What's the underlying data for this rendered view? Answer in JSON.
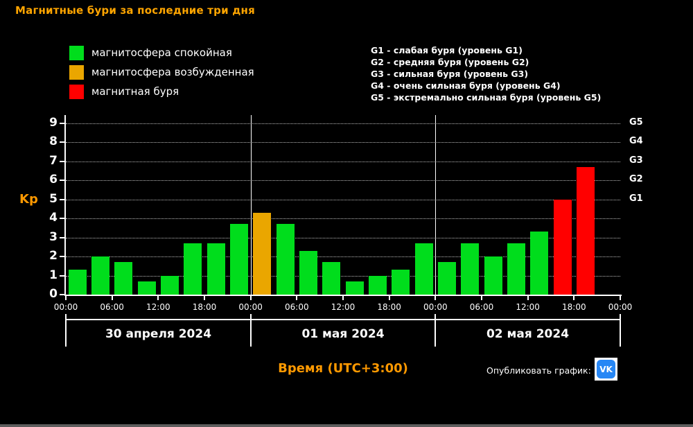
{
  "title": "Магнитные бури за последние три дня",
  "colors": {
    "accent_title": "#ffa500",
    "accent_axis": "#ff9900",
    "vk_blue": "#2787f5"
  },
  "legend": [
    {
      "label": "магнитосфера спокойная",
      "color": "#00dd1c"
    },
    {
      "label": "магнитосфера возбужденная",
      "color": "#eaa600"
    },
    {
      "label": "магнитная буря",
      "color": "#ff0000"
    }
  ],
  "g_legend": [
    "G1 - слабая буря (уровень G1)",
    "G2 - средняя буря (уровень G2)",
    "G3 - сильная буря (уровень G3)",
    "G4 - очень сильная буря (уровень G4)",
    "G5 - экстремально сильная буря (уровень G5)"
  ],
  "chart_data": {
    "type": "bar",
    "title": "Магнитные бури за последние три дня",
    "ylabel": "Kp",
    "xlabel": "Время (UTC+3:00)",
    "ylim": [
      0,
      9
    ],
    "yticks": [
      0,
      1,
      2,
      3,
      4,
      5,
      6,
      7,
      8,
      9
    ],
    "grid": "dotted-horizontal",
    "legend_position": "top",
    "right_axis": [
      {
        "kp": 5,
        "label": "G1"
      },
      {
        "kp": 6,
        "label": "G2"
      },
      {
        "kp": 7,
        "label": "G3"
      },
      {
        "kp": 8,
        "label": "G4"
      },
      {
        "kp": 9,
        "label": "G5"
      }
    ],
    "time_ticks": [
      "00:00",
      "06:00",
      "12:00",
      "18:00",
      "00:00",
      "06:00",
      "12:00",
      "18:00",
      "00:00",
      "06:00",
      "12:00",
      "18:00",
      "00:00"
    ],
    "palette": {
      "quiet": "#00dd1c",
      "excited": "#eaa600",
      "storm": "#ff0000"
    },
    "days": [
      {
        "date": "30 апреля 2024",
        "values": [
          1.3,
          2.0,
          1.7,
          0.7,
          1.0,
          2.7,
          2.7,
          3.7
        ],
        "states": [
          "quiet",
          "quiet",
          "quiet",
          "quiet",
          "quiet",
          "quiet",
          "quiet",
          "quiet"
        ]
      },
      {
        "date": "01 мая 2024",
        "values": [
          4.3,
          3.7,
          2.3,
          1.7,
          0.7,
          1.0,
          1.3,
          2.7
        ],
        "states": [
          "excited",
          "quiet",
          "quiet",
          "quiet",
          "quiet",
          "quiet",
          "quiet",
          "quiet"
        ]
      },
      {
        "date": "02 мая 2024",
        "values": [
          1.7,
          2.7,
          2.0,
          2.7,
          3.3,
          5.0,
          6.7
        ],
        "states": [
          "quiet",
          "quiet",
          "quiet",
          "quiet",
          "quiet",
          "storm",
          "storm"
        ]
      }
    ]
  },
  "footer": {
    "publish_label": "Опубликовать график:",
    "vk_label": "VK"
  }
}
